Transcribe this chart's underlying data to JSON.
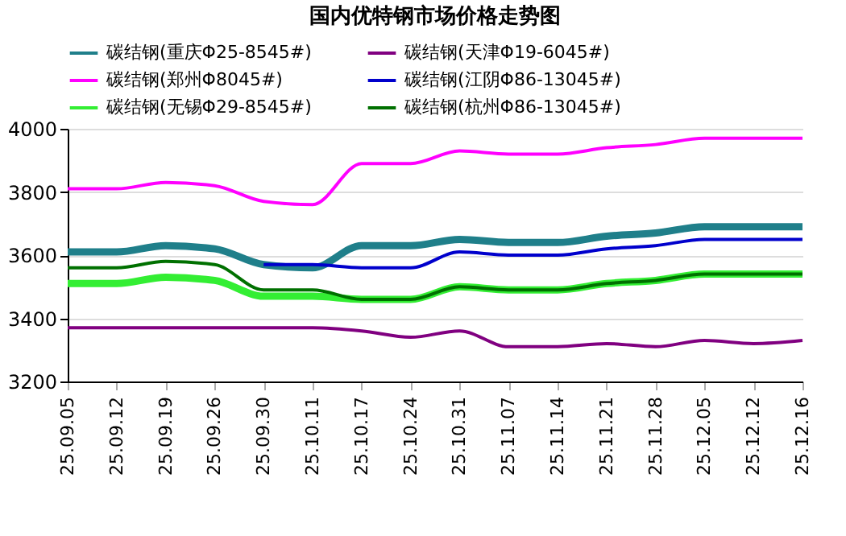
{
  "chart_data": {
    "type": "line",
    "title": "国内优特钢市场价格走势图",
    "categories": [
      "25.09.05",
      "25.09.12",
      "25.09.19",
      "25.09.26",
      "25.09.30",
      "25.10.11",
      "25.10.17",
      "25.10.24",
      "25.10.31",
      "25.11.07",
      "25.11.14",
      "25.11.21",
      "25.11.28",
      "25.12.05",
      "25.12.12",
      "25.12.16"
    ],
    "series": [
      {
        "name": "碳结钢(重庆Φ25-8545#)",
        "color": "#1f7f8a",
        "values": [
          3610,
          3610,
          3630,
          3620,
          3570,
          3560,
          3630,
          3630,
          3650,
          3640,
          3640,
          3660,
          3670,
          3690,
          3690,
          3690
        ]
      },
      {
        "name": "碳结钢(天津Φ19-6045#)",
        "color": "#800080",
        "values": [
          3370,
          3370,
          3370,
          3370,
          3370,
          3370,
          3360,
          3340,
          3360,
          3310,
          3310,
          3320,
          3310,
          3330,
          3320,
          3330
        ]
      },
      {
        "name": "碳结钢(郑州Φ8045#)",
        "color": "#ff00ff",
        "values": [
          3810,
          3810,
          3830,
          3820,
          3770,
          3760,
          3890,
          3890,
          3930,
          3920,
          3920,
          3940,
          3950,
          3970,
          3970,
          3970
        ]
      },
      {
        "name": "碳结钢(江阴Φ86-13045#)",
        "color": "#0000cc",
        "values": [
          null,
          null,
          null,
          null,
          3570,
          3570,
          3560,
          3560,
          3610,
          3600,
          3600,
          3620,
          3630,
          3650,
          3650,
          3650
        ]
      },
      {
        "name": "碳结钢(无锡Φ29-8545#)",
        "color": "#33ee33",
        "values": [
          3510,
          3510,
          3530,
          3520,
          3470,
          3470,
          3460,
          3460,
          3500,
          3490,
          3490,
          3510,
          3520,
          3540,
          3540,
          3540
        ]
      },
      {
        "name": "碳结钢(杭州Φ86-13045#)",
        "color": "#007000",
        "values": [
          3560,
          3560,
          3580,
          3570,
          3490,
          3490,
          3460,
          3460,
          3500,
          3490,
          3490,
          3510,
          3520,
          3540,
          3540,
          3540
        ]
      }
    ],
    "ylim": [
      3200,
      4000
    ],
    "yticks": [
      3200,
      3400,
      3600,
      3800,
      4000
    ],
    "grid": "y",
    "legend": "top",
    "marker": "none",
    "line_style": "solid"
  }
}
